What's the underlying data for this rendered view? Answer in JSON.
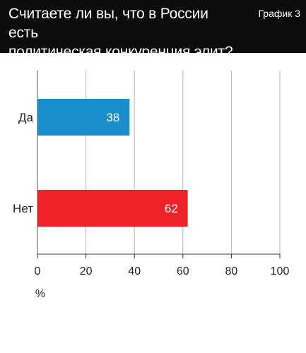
{
  "header": {
    "title_line1": "Считаете ли вы, что в России есть",
    "title_line2": "политическая конкуренция элит?",
    "tag": "График 3"
  },
  "chart_data": {
    "type": "bar",
    "orientation": "horizontal",
    "title": "Считаете ли вы, что в России есть политическая конкуренция элит?",
    "categories": [
      "Да",
      "Нет"
    ],
    "values": [
      38,
      62
    ],
    "colors": [
      "#1a8fc9",
      "#f0232b"
    ],
    "xlabel": "%",
    "xlim": [
      0,
      100
    ],
    "xticks": [
      0,
      20,
      40,
      60,
      80,
      100
    ],
    "grid": true,
    "legend": "none"
  }
}
